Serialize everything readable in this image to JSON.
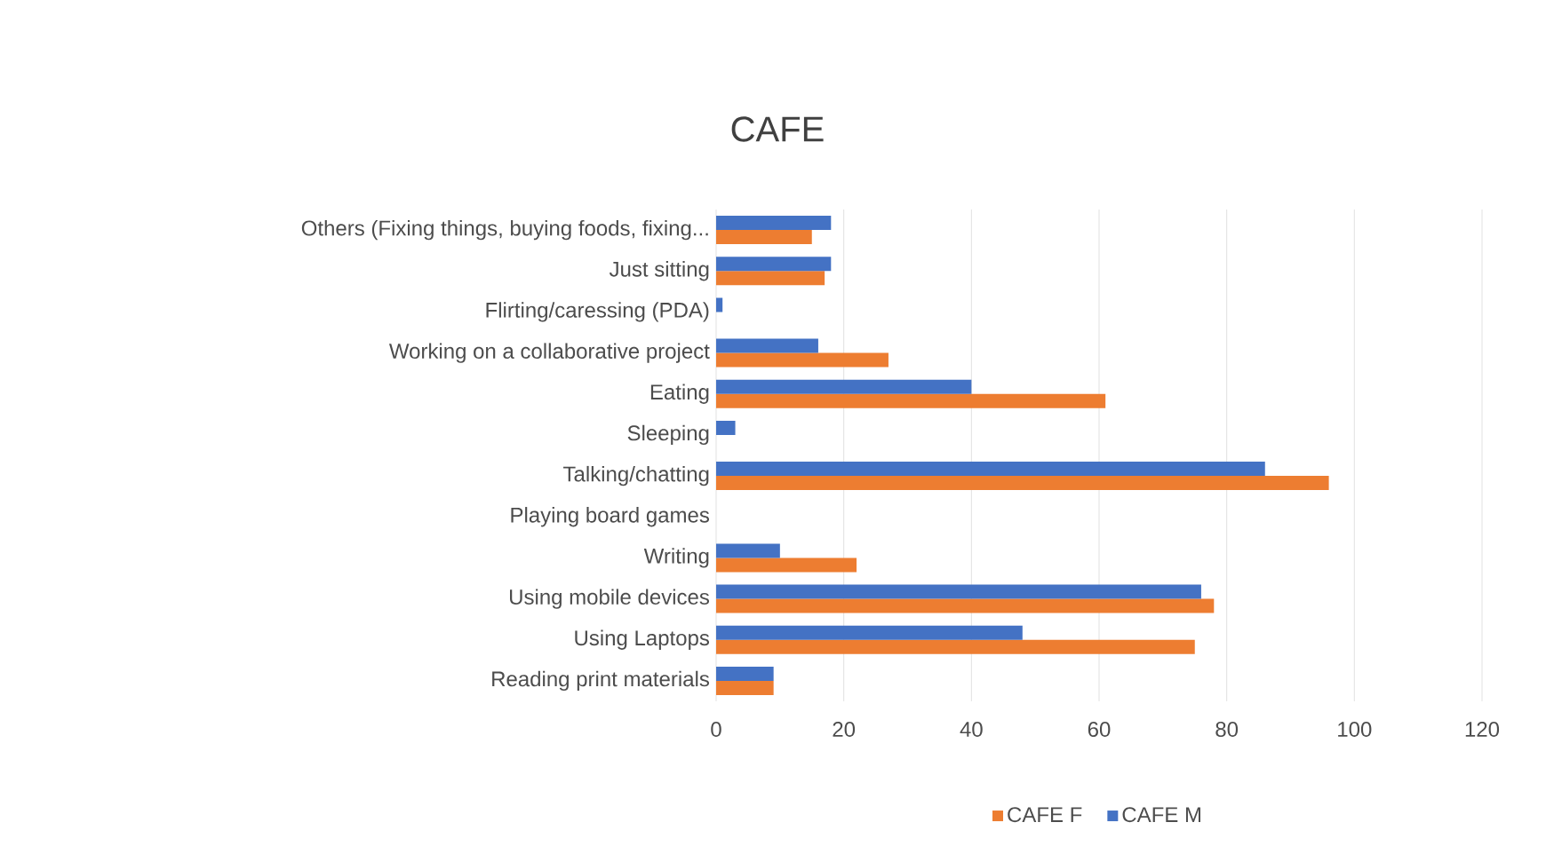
{
  "chart_data": {
    "type": "bar",
    "orientation": "horizontal",
    "title": "CAFE",
    "categories": [
      "Others (Fixing things, buying foods, fixing...",
      "Just sitting",
      "Flirting/caressing (PDA)",
      "Working on a collaborative project",
      "Eating",
      "Sleeping",
      "Talking/chatting",
      "Playing board games",
      "Writing",
      "Using mobile devices",
      "Using Laptops",
      "Reading print materials"
    ],
    "series": [
      {
        "name": "CAFE F",
        "color": "#ed7d31",
        "values": [
          15,
          17,
          0,
          27,
          61,
          0,
          96,
          0,
          22,
          78,
          75,
          9
        ]
      },
      {
        "name": "CAFE M",
        "color": "#4472c4",
        "values": [
          18,
          18,
          1,
          16,
          40,
          3,
          86,
          0,
          10,
          76,
          48,
          9
        ]
      }
    ],
    "xlim": [
      0,
      120
    ],
    "xticks": [
      0,
      20,
      40,
      60,
      80,
      100,
      120
    ],
    "grid": "x",
    "legend": "bottom"
  }
}
